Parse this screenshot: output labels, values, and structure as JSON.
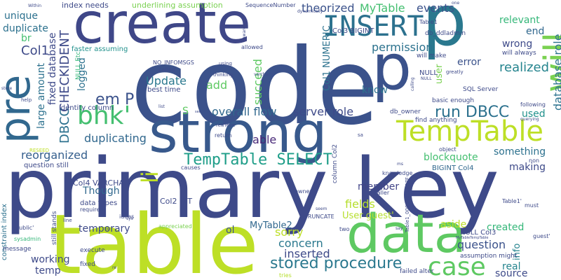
{
  "words": [
    {
      "text": "code",
      "color": "#3b528b"
    },
    {
      "text": "primary key",
      "color": "#3e4a89"
    },
    {
      "text": "table",
      "color": "#bddf26"
    },
    {
      "text": "strong",
      "color": "#38598c"
    },
    {
      "text": "create",
      "color": "#3f4788"
    },
    {
      "text": "p",
      "color": "#2a788e"
    },
    {
      "text": "data",
      "color": "#5ec962"
    },
    {
      "text": "pre",
      "color": "#31688e"
    },
    {
      "text": "p",
      "color": "#3b528b"
    },
    {
      "text": "will",
      "color": "#7ad151"
    },
    {
      "text": "INSERT",
      "color": "#2c718e"
    },
    {
      "text": "TempTable",
      "color": "#bddf26"
    },
    {
      "text": "bhk'",
      "color": "#44bf70"
    },
    {
      "text": "case",
      "color": "#5ec962"
    },
    {
      "text": "stored procedure",
      "color": "#2a788e"
    },
    {
      "text": "TempTable SELECT",
      "color": "#1f9e89"
    },
    {
      "text": "li",
      "color": "#bddf26"
    },
    {
      "text": "em P",
      "color": "#3b528b"
    },
    {
      "text": "run DBCC",
      "color": "#2c718e"
    },
    {
      "text": "realized",
      "color": "#25848e"
    },
    {
      "text": "database role",
      "color": "#2c728e"
    },
    {
      "text": "Col1",
      "color": "#3e4a89"
    },
    {
      "text": "CHECKIDENT",
      "color": "#3e4a89"
    },
    {
      "text": "DBCC",
      "color": "#2c718e"
    },
    {
      "text": "reorganized",
      "color": "#355f8d"
    },
    {
      "text": "duplicating",
      "color": "#31688e"
    },
    {
      "text": "permission",
      "color": "#2c728e"
    },
    {
      "text": "events",
      "color": "#3b528b"
    },
    {
      "text": "theorized",
      "color": "#3b528b"
    },
    {
      "text": "MyTable",
      "color": "#44bf70"
    },
    {
      "text": "question",
      "color": "#3b528b"
    },
    {
      "text": "fields",
      "color": "#b5de2b"
    },
    {
      "text": "sorry",
      "color": "#bddf26"
    },
    {
      "text": "inserted",
      "color": "#3e4a89"
    },
    {
      "text": "concern",
      "color": "#2a788e"
    },
    {
      "text": "able",
      "color": "#482878"
    },
    {
      "text": "server role",
      "color": "#3e4a89"
    },
    {
      "text": "overall flow",
      "color": "#31688e"
    },
    {
      "text": "Update",
      "color": "#2a788e"
    },
    {
      "text": "add",
      "color": "#5ec962"
    },
    {
      "text": "succeed",
      "color": "#5ec962"
    },
    {
      "text": "logged",
      "color": "#2c718e"
    },
    {
      "text": "large amount",
      "color": "#2c718e"
    },
    {
      "text": "fixed database",
      "color": "#3e4a89"
    },
    {
      "text": "duplicate",
      "color": "#2c718e"
    },
    {
      "text": "unique",
      "color": "#2c718e"
    },
    {
      "text": "something",
      "color": "#2c718e"
    },
    {
      "text": "making",
      "color": "#3e4a89"
    },
    {
      "text": "blockquote",
      "color": "#44bf70"
    },
    {
      "text": "member",
      "color": "#414487"
    },
    {
      "text": "used",
      "color": "#21918c"
    },
    {
      "text": "relevant",
      "color": "#35b779"
    },
    {
      "text": "end",
      "color": "#31688e"
    },
    {
      "text": "wrong",
      "color": "#3e4a89"
    },
    {
      "text": "error",
      "color": "#3b528b"
    },
    {
      "text": "know",
      "color": "#2c728e"
    },
    {
      "text": "temporary",
      "color": "#3e4a89"
    },
    {
      "text": "working",
      "color": "#3e4a89"
    },
    {
      "text": "temp",
      "color": "#3e4a89"
    },
    {
      "text": "Though",
      "color": "#31688e"
    },
    {
      "text": "aside",
      "color": "#bddf26"
    },
    {
      "text": "created",
      "color": "#35b779"
    },
    {
      "text": "real",
      "color": "#25848e"
    },
    {
      "text": "source",
      "color": "#3e4a89"
    },
    {
      "text": "info",
      "color": "#25848e"
    },
    {
      "text": "ol",
      "color": "#3b528b"
    },
    {
      "text": "User guest'",
      "color": "#b5de2b"
    },
    {
      "text": "MyTable2",
      "color": "#31688e"
    },
    {
      "text": "br",
      "color": "#44bf70"
    },
    {
      "text": "S",
      "color": "#5ec962"
    },
    {
      "text": "user",
      "color": "#7ad151"
    },
    {
      "text": "Col1 NUMERIC",
      "color": "#2c728e"
    },
    {
      "text": "Col4 VARCHAR",
      "color": "#3e4a89"
    },
    {
      "text": "Col2 INT",
      "color": "#3e4a89"
    },
    {
      "text": "index needs",
      "color": "#3e4a89"
    },
    {
      "text": "underlining assumption",
      "color": "#7ad151"
    },
    {
      "text": "faster assuming",
      "color": "#21918c"
    },
    {
      "text": "identity column",
      "color": "#3e4a89"
    },
    {
      "text": "best time",
      "color": "#3e4a89"
    },
    {
      "text": "NULL",
      "color": "#3e4a89"
    },
    {
      "text": "data types",
      "color": "#3e4a89"
    },
    {
      "text": "question still",
      "color": "#3e4a89"
    },
    {
      "text": "Col3 BIGINT",
      "color": "#3e4a89"
    },
    {
      "text": "NULL Col3",
      "color": "#3e4a89"
    },
    {
      "text": "BIGINT Col4",
      "color": "#31688e"
    },
    {
      "text": "assumption might",
      "color": "#3e4a89"
    },
    {
      "text": "will always",
      "color": "#3e4a89"
    },
    {
      "text": "will make",
      "color": "#3e4a89"
    },
    {
      "text": "find anything",
      "color": "#3e4a89"
    },
    {
      "text": "basic enough",
      "color": "#3e4a89"
    },
    {
      "text": "SQL Server",
      "color": "#3e4a89"
    },
    {
      "text": "column Col2",
      "color": "#3e4a89"
    },
    {
      "text": "constraint index",
      "color": "#2c718e"
    },
    {
      "text": "still stands",
      "color": "#3e4a89"
    },
    {
      "text": "execute",
      "color": "#3e4a89"
    },
    {
      "text": "fixed",
      "color": "#3e4a89"
    },
    {
      "text": "message",
      "color": "#3e4a89"
    },
    {
      "text": "TRUNCATE",
      "color": "#3e4a89"
    },
    {
      "text": "NULL Etc",
      "color": "#35b779"
    },
    {
      "text": "db_owner",
      "color": "#3e4a89"
    },
    {
      "text": "db_ddladmin",
      "color": "#3e4a89"
    },
    {
      "text": "following",
      "color": "#3e4a89"
    },
    {
      "text": "Table1",
      "color": "#3e4a89"
    },
    {
      "text": "Table1'",
      "color": "#3e4a89"
    },
    {
      "text": "must",
      "color": "#3e4a89"
    },
    {
      "text": "guest'",
      "color": "#3e4a89"
    },
    {
      "text": "non",
      "color": "#3e4a89"
    },
    {
      "text": "object",
      "color": "#3e4a89"
    },
    {
      "text": "owner",
      "color": "#3e4a89"
    },
    {
      "text": "knowledge",
      "color": "#3e4a89"
    },
    {
      "text": "Caller",
      "color": "#3e4a89"
    },
    {
      "text": "two",
      "color": "#3e4a89"
    },
    {
      "text": "ideas",
      "color": "#3e4a89"
    },
    {
      "text": "required",
      "color": "#3e4a89"
    },
    {
      "text": "appreciated",
      "color": "#7ad151"
    },
    {
      "text": "failed alter",
      "color": "#3e4a89"
    },
    {
      "text": "tries",
      "color": "#b5de2b"
    },
    {
      "text": "sysadmin",
      "color": "#35b779"
    },
    {
      "text": "public'",
      "color": "#3e4a89"
    },
    {
      "text": "RESEED",
      "color": "#bddf26"
    },
    {
      "text": "retrieve",
      "color": "#3e4a89"
    },
    {
      "text": "return",
      "color": "#3e4a89"
    },
    {
      "text": "causes",
      "color": "#3e4a89"
    },
    {
      "text": "list",
      "color": "#3e4a89"
    },
    {
      "text": "seem",
      "color": "#3e4a89"
    },
    {
      "text": "called",
      "color": "#3e4a89"
    },
    {
      "text": "thinking",
      "color": "#3e4a89"
    },
    {
      "text": "using",
      "color": "#3e4a89"
    },
    {
      "text": "allowed",
      "color": "#3e4a89"
    },
    {
      "text": "NO_INFOMSGS",
      "color": "#3e4a89"
    },
    {
      "text": "SequenceNumber",
      "color": "#3e4a89"
    },
    {
      "text": "dynamically",
      "color": "#3e4a89"
    },
    {
      "text": "Within",
      "color": "#3e4a89"
    },
    {
      "text": "greatly",
      "color": "#3e4a89"
    },
    {
      "text": "querying",
      "color": "#3e4a89"
    },
    {
      "text": "store",
      "color": "#3e4a89"
    },
    {
      "text": "help",
      "color": "#3e4a89"
    },
    {
      "text": "sys",
      "color": "#3e4a89"
    },
    {
      "text": "line",
      "color": "#3e4a89"
    },
    {
      "text": "say",
      "color": "#3e4a89"
    },
    {
      "text": "aware",
      "color": "#3e4a89"
    },
    {
      "text": "calling",
      "color": "#3e4a89"
    },
    {
      "text": "one",
      "color": "#3e4a89"
    },
    {
      "text": "Table1_00000000007F",
      "color": "#3e4a89"
    },
    {
      "text": "MyTableTempTable",
      "color": "#3e4a89"
    },
    {
      "text": "varchar",
      "color": "#3e4a89"
    },
    {
      "text": "sa",
      "color": "#3e4a89"
    },
    {
      "text": "see",
      "color": "#3e4a89"
    },
    {
      "text": "ms",
      "color": "#3e4a89"
    },
    {
      "text": "Int",
      "color": "#3e4a89"
    },
    {
      "text": "re",
      "color": "#3e4a89"
    },
    {
      "text": "NULL",
      "color": "#3e4a89"
    }
  ]
}
